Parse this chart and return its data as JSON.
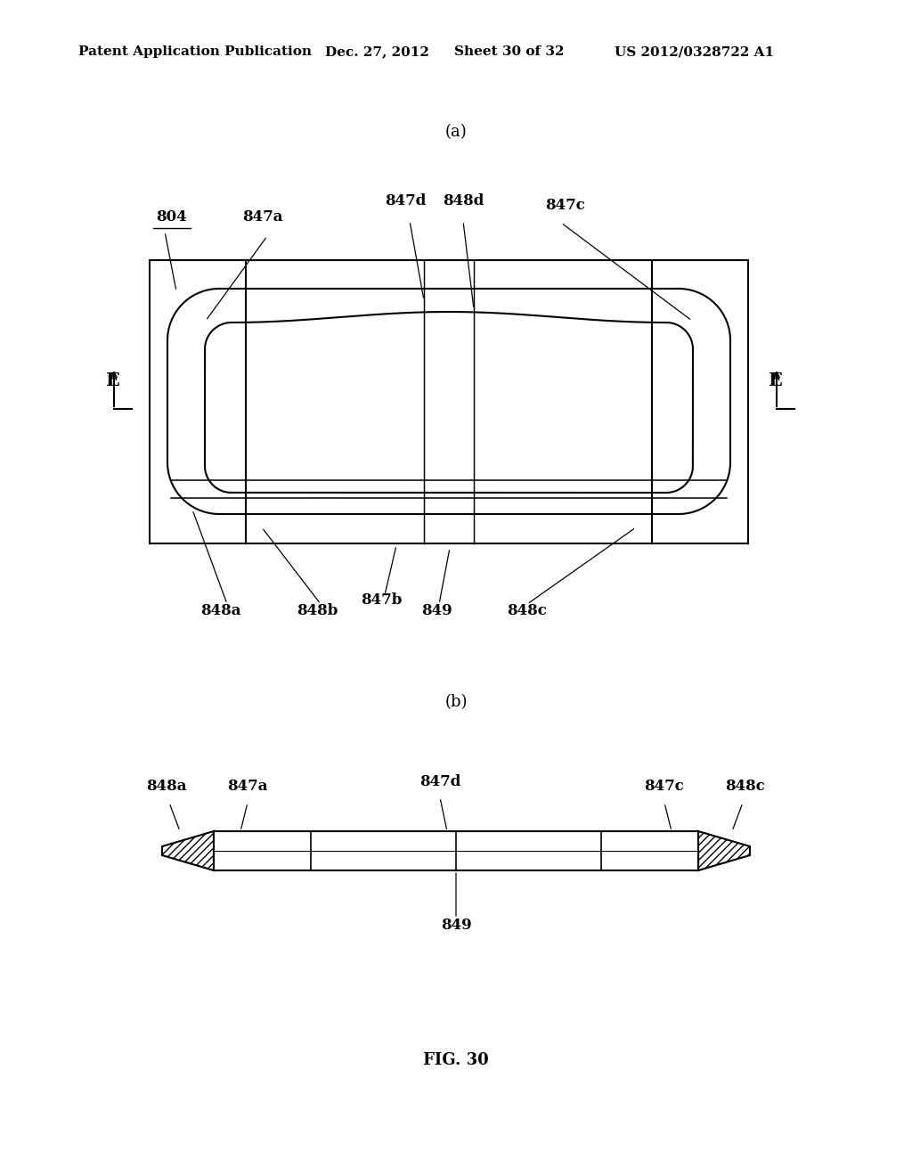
{
  "bg_color": "#ffffff",
  "header_text": "Patent Application Publication",
  "header_date": "Dec. 27, 2012",
  "header_sheet": "Sheet 30 of 32",
  "header_patent": "US 2012/0328722 A1",
  "fig_label": "FIG. 30",
  "sub_a_label": "(a)",
  "sub_b_label": "(b)",
  "label_804": "804",
  "label_847a_top": "847a",
  "label_847d_top": "847d",
  "label_848d_top": "848d",
  "label_847c_top": "847c",
  "label_848a_bot": "848a",
  "label_848b_bot": "848b",
  "label_847b_bot": "847b",
  "label_849_bot": "849",
  "label_848c_bot": "848c",
  "label_E_left": "E",
  "label_E_right": "E",
  "label_848a_b": "848a",
  "label_847a_b": "847a",
  "label_847d_b": "847d",
  "label_847c_b": "847c",
  "label_848c_b": "848c",
  "label_849_b": "849"
}
